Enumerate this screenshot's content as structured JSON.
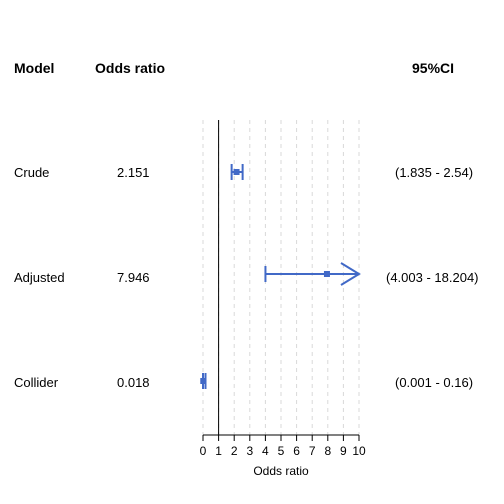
{
  "headers": {
    "model": "Model",
    "odds_ratio": "Odds ratio",
    "ci": "95%CI"
  },
  "chart_data": {
    "type": "forest",
    "title": "",
    "xlabel": "Odds ratio",
    "xlim": [
      0,
      10
    ],
    "xticks": [
      "0",
      "1",
      "2",
      "3",
      "4",
      "5",
      "6",
      "7",
      "8",
      "9",
      "10"
    ],
    "reference_line": 1,
    "grid": "vertical-dashed",
    "color": "#4169C7",
    "rows": [
      {
        "model": "Crude",
        "or": 2.151,
        "or_label": "2.151",
        "lower": 1.835,
        "upper": 2.54,
        "ci_label": "(1.835 - 2.54)"
      },
      {
        "model": "Adjusted",
        "or": 7.946,
        "or_label": "7.946",
        "lower": 4.003,
        "upper": 18.204,
        "ci_label": "(4.003 - 18.204)"
      },
      {
        "model": "Collider",
        "or": 0.018,
        "or_label": "0.018",
        "lower": 0.001,
        "upper": 0.16,
        "ci_label": "(0.001 - 0.16)"
      }
    ]
  }
}
